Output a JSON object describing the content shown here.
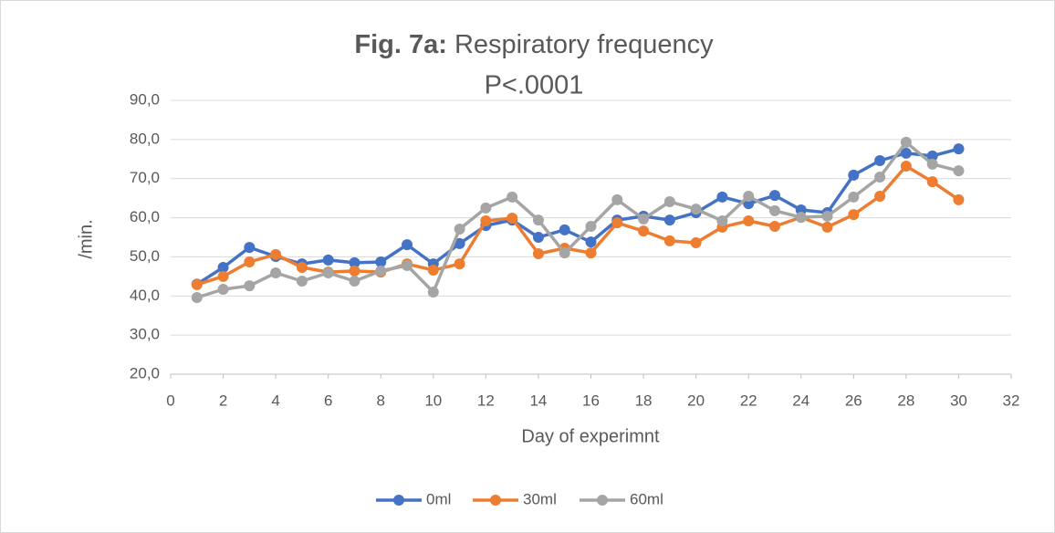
{
  "chart_data": {
    "type": "line",
    "title_bold": "Fig. 7a:",
    "title": "Respiratory frequency",
    "subtitle": "P<.0001",
    "x_label": "Day of experimnt",
    "y_label": "/min.",
    "x": [
      1,
      2,
      3,
      4,
      5,
      6,
      7,
      8,
      9,
      10,
      11,
      12,
      13,
      14,
      15,
      16,
      17,
      18,
      19,
      20,
      21,
      22,
      23,
      24,
      25,
      26,
      27,
      28,
      29,
      30
    ],
    "series": [
      {
        "name": "0ml",
        "color": "#4472c4",
        "values": [
          43.0,
          47.3,
          52.4,
          50.1,
          48.2,
          49.2,
          48.5,
          48.7,
          53.1,
          48.2,
          53.4,
          58.0,
          59.4,
          55.0,
          56.9,
          53.8,
          59.4,
          60.4,
          59.4,
          61.3,
          65.3,
          63.6,
          65.7,
          62.0,
          61.3,
          70.9,
          74.6,
          76.5,
          75.8,
          77.6
        ]
      },
      {
        "name": "30ml",
        "color": "#ed7d31",
        "values": [
          42.9,
          45.0,
          48.7,
          50.6,
          47.3,
          46.1,
          46.4,
          46.1,
          48.2,
          46.6,
          48.2,
          59.2,
          59.9,
          50.8,
          52.2,
          51.0,
          58.7,
          56.6,
          54.1,
          53.6,
          57.6,
          59.2,
          57.8,
          60.1,
          57.6,
          60.8,
          65.5,
          73.2,
          69.2,
          64.6
        ]
      },
      {
        "name": "60ml",
        "color": "#a5a5a5",
        "values": [
          39.6,
          41.7,
          42.6,
          45.9,
          43.8,
          45.9,
          43.8,
          46.4,
          47.8,
          41.0,
          57.1,
          62.5,
          65.3,
          59.4,
          51.0,
          57.8,
          64.6,
          59.7,
          64.1,
          62.2,
          59.2,
          65.5,
          61.8,
          60.1,
          60.4,
          65.3,
          70.4,
          79.3,
          73.7,
          72.0
        ]
      }
    ],
    "xlim": [
      0,
      32
    ],
    "xticks": [
      0,
      2,
      4,
      6,
      8,
      10,
      12,
      14,
      16,
      18,
      20,
      22,
      24,
      26,
      28,
      30,
      32
    ],
    "ylim": [
      20,
      90
    ],
    "yticks": [
      {
        "value": 20,
        "label": "20,0"
      },
      {
        "value": 30,
        "label": "30,0"
      },
      {
        "value": 40,
        "label": "40,0"
      },
      {
        "value": 50,
        "label": "50,0"
      },
      {
        "value": 60,
        "label": "60,0"
      },
      {
        "value": 70,
        "label": "70,0"
      },
      {
        "value": 80,
        "label": "80,0"
      },
      {
        "value": 90,
        "label": "90,0"
      }
    ],
    "grid": true,
    "legend": "bottom"
  }
}
